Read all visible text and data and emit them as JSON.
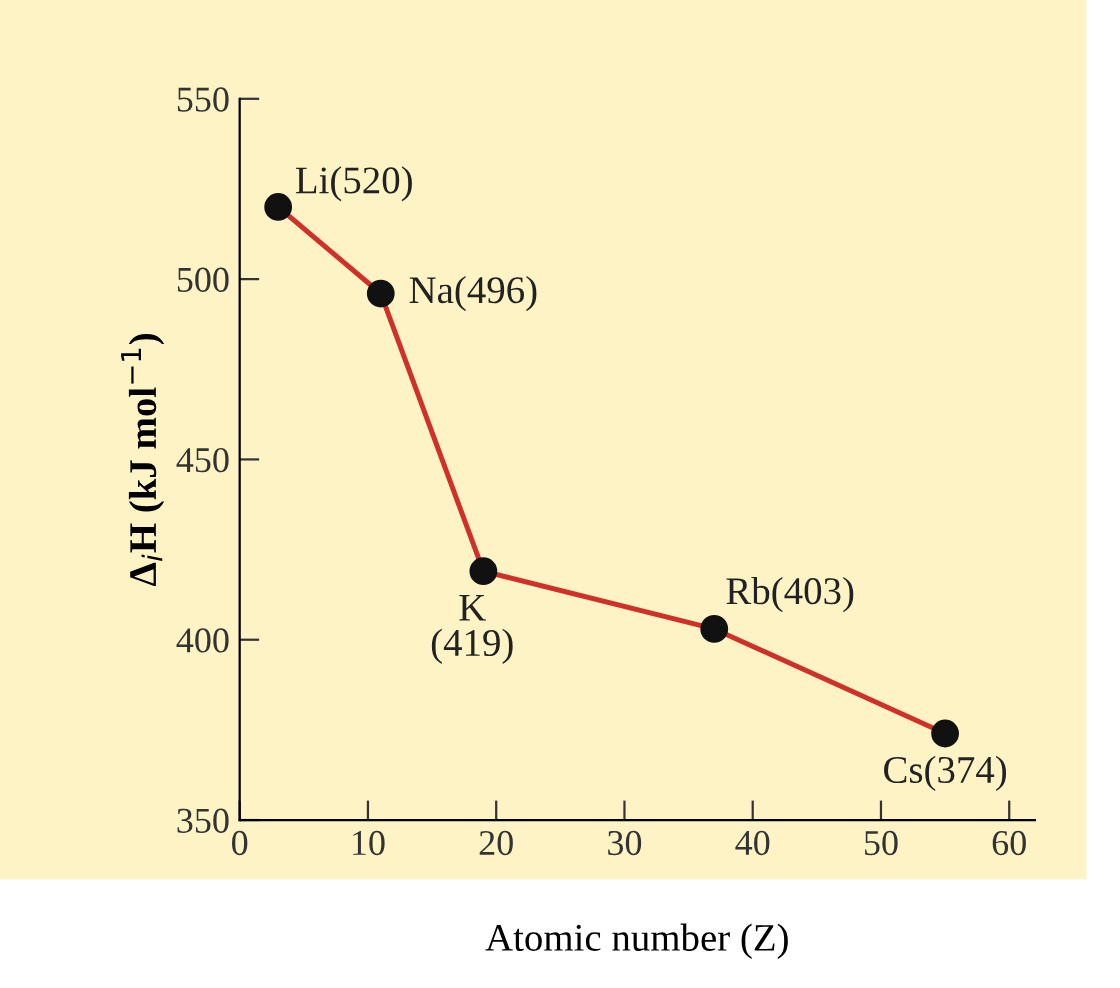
{
  "chart_data": {
    "type": "line",
    "xlabel": "Atomic number (Z)",
    "ylabel": "Δ$_{i}$H (kJ mol$^{−1}$)",
    "x": [
      3,
      11,
      19,
      37,
      55
    ],
    "series": [
      {
        "color": "#d0302a",
        "values": [
          520,
          496,
          419,
          403,
          374
        ]
      }
    ],
    "marker": "circle",
    "line_style": "solid",
    "grid": false,
    "legend": false,
    "xlim": [
      0,
      62
    ],
    "xticks": [
      0,
      10,
      20,
      30,
      40,
      50,
      60
    ],
    "ylim": [
      350,
      550
    ],
    "yticks": [
      350,
      400,
      450,
      500,
      550
    ],
    "annotations": [
      {
        "text": "Li(520)",
        "x": 3,
        "y": 520
      },
      {
        "text": "Na(496)",
        "x": 11,
        "y": 496
      },
      {
        "text": "K\n(419)",
        "x": 19,
        "y": 419
      },
      {
        "text": "Rb(403)",
        "x": 37,
        "y": 403
      },
      {
        "text": "Cs(374)",
        "x": 55,
        "y": 374
      }
    ]
  }
}
